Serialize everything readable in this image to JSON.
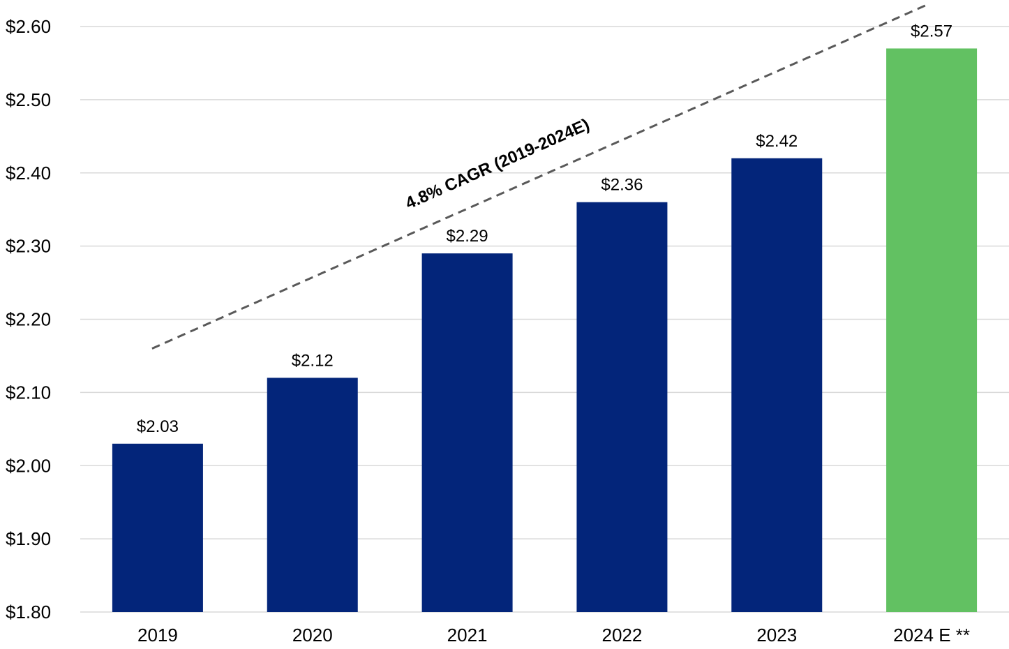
{
  "chart_data": {
    "type": "bar",
    "categories": [
      "2019",
      "2020",
      "2021",
      "2022",
      "2023",
      "2024 E **"
    ],
    "values": [
      2.03,
      2.12,
      2.29,
      2.36,
      2.42,
      2.57
    ],
    "data_labels": [
      "$2.03",
      "$2.12",
      "$2.29",
      "$2.36",
      "$2.42",
      "$2.57"
    ],
    "title": "",
    "xlabel": "",
    "ylabel": "",
    "ylim": [
      1.8,
      2.6
    ],
    "yticks": [
      1.8,
      1.9,
      2.0,
      2.1,
      2.2,
      2.3,
      2.4,
      2.5,
      2.6
    ],
    "ytick_labels": [
      "$1.80",
      "$1.90",
      "$2.00",
      "$2.10",
      "$2.20",
      "$2.30",
      "$2.40",
      "$2.50",
      "$2.60"
    ],
    "grid": true,
    "legend": "none",
    "colors": {
      "actual": "#03257A",
      "estimate": "#62C162",
      "gridline": "#D9D9D9",
      "trend": "#595959"
    },
    "bar_colors": [
      "actual",
      "actual",
      "actual",
      "actual",
      "actual",
      "estimate"
    ],
    "annotation": {
      "text": "4.8% CAGR (2019-2024E)",
      "line_start": [
        2019,
        2.16
      ],
      "line_end": [
        2024,
        2.63
      ]
    }
  }
}
